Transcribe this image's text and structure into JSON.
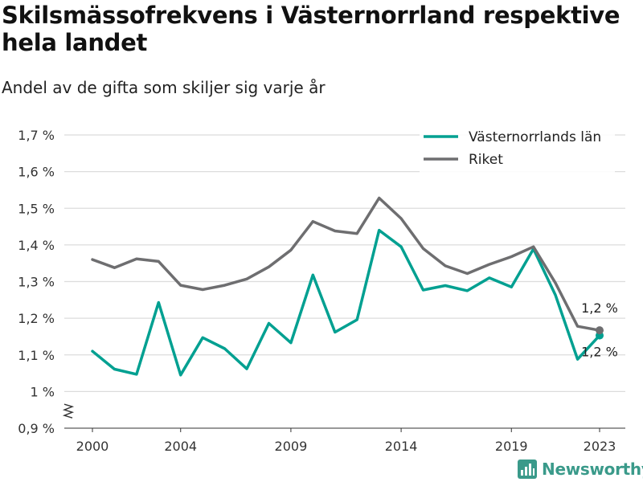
{
  "title": "Skilsmässofrekvens i Västernorrland respektive hela landet",
  "subtitle": "Andel av de gifta som skiljer sig varje år",
  "brand": {
    "name": "Newsworthy",
    "icon": "bar-chart-logo-icon",
    "color": "#3a9a8a"
  },
  "chart_data": {
    "type": "line",
    "x": [
      2000,
      2001,
      2002,
      2003,
      2004,
      2005,
      2006,
      2007,
      2008,
      2009,
      2010,
      2011,
      2012,
      2013,
      2014,
      2015,
      2016,
      2017,
      2018,
      2019,
      2020,
      2021,
      2022,
      2023
    ],
    "x_ticks": [
      2000,
      2004,
      2009,
      2014,
      2019,
      2023
    ],
    "x_tick_labels": [
      "2000",
      "2004",
      "2009",
      "2014",
      "2019",
      "2023"
    ],
    "y_ticks": [
      0.9,
      1.0,
      1.1,
      1.2,
      1.3,
      1.4,
      1.5,
      1.6,
      1.7
    ],
    "y_tick_labels": [
      "0,9 %",
      "1 %",
      "1,1 %",
      "1,2 %",
      "1,3 %",
      "1,4 %",
      "1,5 %",
      "1,6 %",
      "1,7 %"
    ],
    "ylim": [
      0.9,
      1.7
    ],
    "y_axis_break": true,
    "grid": true,
    "legend_position": "top-right",
    "xlabel": "",
    "ylabel": "",
    "series": [
      {
        "name": "Västernorrlands län",
        "color": "#00a091",
        "values": [
          1.11,
          1.061,
          1.047,
          1.243,
          1.045,
          1.147,
          1.117,
          1.062,
          1.186,
          1.133,
          1.318,
          1.162,
          1.196,
          1.44,
          1.395,
          1.277,
          1.289,
          1.275,
          1.31,
          1.285,
          1.389,
          1.263,
          1.088,
          1.153
        ],
        "end_label": "1,2 %"
      },
      {
        "name": "Riket",
        "color": "#6e6e70",
        "values": [
          1.36,
          1.338,
          1.362,
          1.355,
          1.29,
          1.278,
          1.29,
          1.307,
          1.34,
          1.386,
          1.464,
          1.438,
          1.431,
          1.528,
          1.472,
          1.39,
          1.343,
          1.322,
          1.347,
          1.368,
          1.395,
          1.296,
          1.178,
          1.167
        ],
        "end_label": "1,2 %"
      }
    ]
  }
}
